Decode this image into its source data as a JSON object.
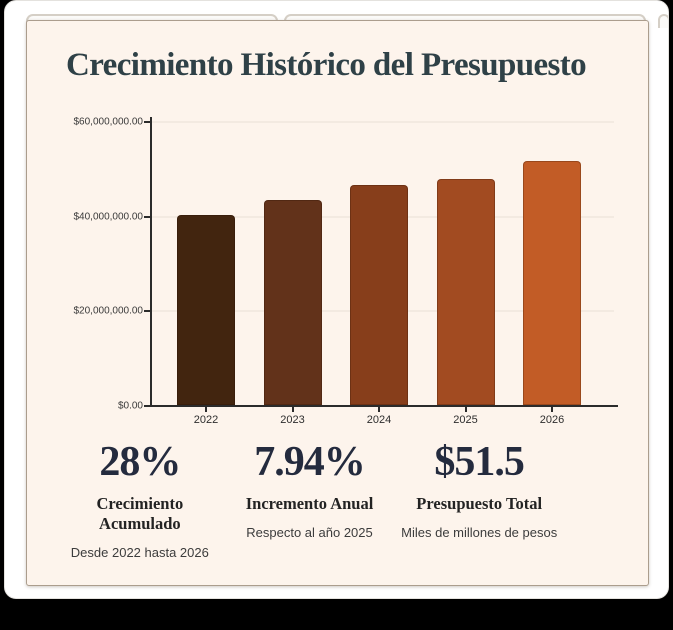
{
  "card": {
    "title": "Crecimiento Histórico del Presupuesto",
    "background": "#fdf4ec",
    "title_color": "#2f4147"
  },
  "chart_data": {
    "type": "bar",
    "title": "Crecimiento Histórico del Presupuesto",
    "categories": [
      "2022",
      "2023",
      "2024",
      "2025",
      "2026"
    ],
    "values": [
      40200000,
      43300000,
      46400000,
      47700000,
      51500000
    ],
    "xlabel": "",
    "ylabel": "",
    "ylim": [
      0,
      60000000
    ],
    "ytick_labels": [
      "$0.00",
      "$20,000,000.00",
      "$40,000,000.00",
      "$60,000,000.00"
    ],
    "grid": true,
    "legend": false,
    "bar_colors": [
      "#42250f",
      "#62321a",
      "#873e1b",
      "#a24b21",
      "#c25c26"
    ],
    "axis_color": "#2b2b2b",
    "gridline_color": "#f3eae1"
  },
  "stats": [
    {
      "value": "28%",
      "label": "Crecimiento Acumulado",
      "sublabel": "Desde 2022 hasta 2026"
    },
    {
      "value": "7.94%",
      "label": "Incremento Anual",
      "sublabel": "Respecto al año 2025"
    },
    {
      "value": "$51.5",
      "label": "Presupuesto Total",
      "sublabel": "Miles de millones de pesos"
    }
  ]
}
